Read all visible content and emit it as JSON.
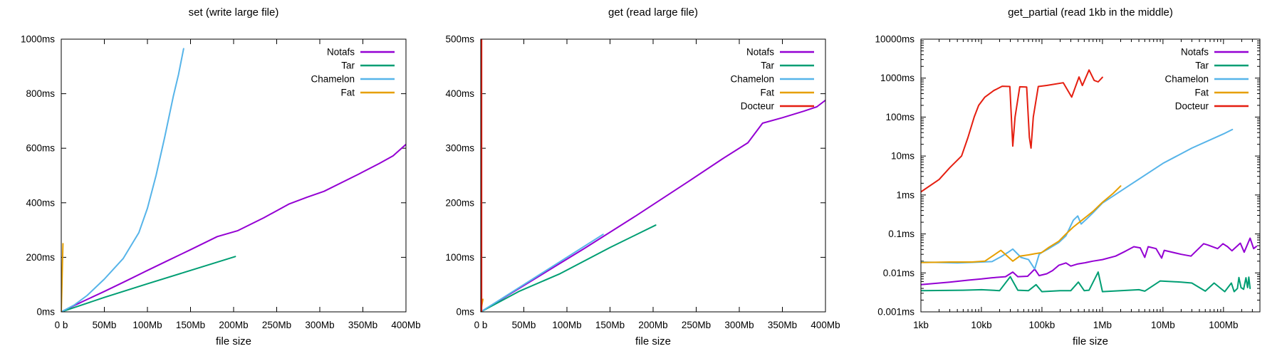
{
  "page": {
    "background": "#ffffff"
  },
  "legend_colors": {
    "Notafs": "#9400d3",
    "Tar": "#009e73",
    "Chamelon": "#56b4e9",
    "Fat": "#e69f00",
    "Docteur": "#e51e10"
  },
  "chart_data": [
    {
      "type": "line",
      "title": "set (write large file)",
      "xlabel": "file size",
      "xscale": "linear",
      "yscale": "linear",
      "xlim": [
        0,
        400
      ],
      "ylim": [
        0,
        1000
      ],
      "x_unit": "Mb",
      "y_unit": "ms",
      "grid": false,
      "legend_position": "top-right",
      "xticks": {
        "values": [
          0,
          50,
          100,
          150,
          200,
          250,
          300,
          350,
          400
        ],
        "labels": [
          "0 b",
          "50Mb",
          "100Mb",
          "150Mb",
          "200Mb",
          "250Mb",
          "300Mb",
          "350Mb",
          "400Mb"
        ]
      },
      "yticks": {
        "values": [
          0,
          200,
          400,
          600,
          800,
          1000
        ],
        "labels": [
          "0ms",
          "200ms",
          "400ms",
          "600ms",
          "800ms",
          "1000ms"
        ]
      },
      "series": [
        {
          "name": "Notafs",
          "color": "#9400d3",
          "points": [
            [
              0,
              0
            ],
            [
              25,
              38
            ],
            [
              50,
              75
            ],
            [
              75,
              113
            ],
            [
              100,
              152
            ],
            [
              125,
              190
            ],
            [
              150,
              228
            ],
            [
              181,
              276
            ],
            [
              205,
              298
            ],
            [
              235,
              345
            ],
            [
              264,
              395
            ],
            [
              285,
              420
            ],
            [
              305,
              442
            ],
            [
              345,
              505
            ],
            [
              369,
              544
            ],
            [
              385,
              572
            ],
            [
              400,
              614
            ]
          ]
        },
        {
          "name": "Tar",
          "color": "#009e73",
          "points": [
            [
              0,
              0
            ],
            [
              50,
              53
            ],
            [
              100,
              103
            ],
            [
              150,
              152
            ],
            [
              202,
              203
            ]
          ]
        },
        {
          "name": "Chamelon",
          "color": "#56b4e9",
          "points": [
            [
              0,
              0
            ],
            [
              15,
              25
            ],
            [
              30,
              60
            ],
            [
              50,
              120
            ],
            [
              72,
              196
            ],
            [
              90,
              290
            ],
            [
              100,
              380
            ],
            [
              110,
              500
            ],
            [
              120,
              640
            ],
            [
              130,
              790
            ],
            [
              136,
              870
            ],
            [
              142,
              965
            ]
          ]
        },
        {
          "name": "Fat",
          "color": "#e69f00",
          "points": [
            [
              0,
              0
            ],
            [
              0.6,
              70
            ],
            [
              1.3,
              170
            ],
            [
              2,
              250
            ]
          ]
        }
      ]
    },
    {
      "type": "line",
      "title": "get (read large file)",
      "xlabel": "file size",
      "xscale": "linear",
      "yscale": "linear",
      "xlim": [
        0,
        400
      ],
      "ylim": [
        0,
        500
      ],
      "x_unit": "Mb",
      "y_unit": "ms",
      "grid": false,
      "legend_position": "top-right",
      "xticks": {
        "values": [
          0,
          50,
          100,
          150,
          200,
          250,
          300,
          350,
          400
        ],
        "labels": [
          "0 b",
          "50Mb",
          "100Mb",
          "150Mb",
          "200Mb",
          "250Mb",
          "300Mb",
          "350Mb",
          "400Mb"
        ]
      },
      "yticks": {
        "values": [
          0,
          100,
          200,
          300,
          400,
          500
        ],
        "labels": [
          "0ms",
          "100ms",
          "200ms",
          "300ms",
          "400ms",
          "500ms"
        ]
      },
      "series": [
        {
          "name": "Notafs",
          "color": "#9400d3",
          "points": [
            [
              0,
              0
            ],
            [
              60,
              58
            ],
            [
              120,
              116
            ],
            [
              180,
              176
            ],
            [
              240,
              238
            ],
            [
              280,
              280
            ],
            [
              310,
              310
            ],
            [
              327,
              346
            ],
            [
              350,
              356
            ],
            [
              375,
              368
            ],
            [
              390,
              376
            ],
            [
              400,
              388
            ]
          ]
        },
        {
          "name": "Tar",
          "color": "#009e73",
          "points": [
            [
              0,
              0
            ],
            [
              45,
              38
            ],
            [
              92,
              70
            ],
            [
              150,
              118
            ],
            [
              203,
              159
            ]
          ]
        },
        {
          "name": "Chamelon",
          "color": "#56b4e9",
          "points": [
            [
              0,
              0
            ],
            [
              70,
              70
            ],
            [
              142,
              142
            ]
          ]
        },
        {
          "name": "Fat",
          "color": "#e69f00",
          "points": [
            [
              0,
              2
            ],
            [
              1,
              10
            ],
            [
              2.5,
              23
            ]
          ]
        },
        {
          "name": "Docteur",
          "color": "#e51e10",
          "points": [
            [
              0.6,
              0
            ],
            [
              0.6,
              500
            ]
          ]
        }
      ]
    },
    {
      "type": "line",
      "title": "get_partial (read 1kb in the middle)",
      "xlabel": "file size",
      "xscale": "log",
      "yscale": "log",
      "xlim": [
        1,
        400000
      ],
      "ylim": [
        0.001,
        10000
      ],
      "x_unit": "kb",
      "y_unit": "ms",
      "grid": false,
      "legend_position": "top-right",
      "xticks": {
        "values": [
          1,
          10,
          100,
          1000,
          10000,
          100000
        ],
        "labels": [
          "1kb",
          "10kb",
          "100kb",
          "1Mb",
          "10Mb",
          "100Mb"
        ]
      },
      "yticks": {
        "values": [
          0.001,
          0.01,
          0.1,
          1,
          10,
          100,
          1000,
          10000
        ],
        "labels": [
          "0.001ms",
          "0.01ms",
          "0.1ms",
          "1ms",
          "10ms",
          "100ms",
          "1000ms",
          "10000ms"
        ]
      },
      "series": [
        {
          "name": "Notafs",
          "color": "#9400d3",
          "points": [
            [
              1,
              0.005
            ],
            [
              3,
              0.0058
            ],
            [
              6,
              0.0065
            ],
            [
              10,
              0.007
            ],
            [
              15,
              0.0075
            ],
            [
              25,
              0.008
            ],
            [
              33,
              0.0105
            ],
            [
              40,
              0.008
            ],
            [
              58,
              0.0082
            ],
            [
              76,
              0.0125
            ],
            [
              90,
              0.0085
            ],
            [
              120,
              0.0095
            ],
            [
              150,
              0.0115
            ],
            [
              190,
              0.0157
            ],
            [
              250,
              0.018
            ],
            [
              300,
              0.015
            ],
            [
              390,
              0.017
            ],
            [
              500,
              0.018
            ],
            [
              690,
              0.02
            ],
            [
              1000,
              0.022
            ],
            [
              1650,
              0.027
            ],
            [
              2400,
              0.036
            ],
            [
              3300,
              0.047
            ],
            [
              4200,
              0.044
            ],
            [
              5000,
              0.025
            ],
            [
              5700,
              0.047
            ],
            [
              7700,
              0.042
            ],
            [
              9500,
              0.024
            ],
            [
              10500,
              0.038
            ],
            [
              20000,
              0.03
            ],
            [
              29000,
              0.027
            ],
            [
              47000,
              0.056
            ],
            [
              55000,
              0.052
            ],
            [
              80000,
              0.042
            ],
            [
              98000,
              0.056
            ],
            [
              117000,
              0.047
            ],
            [
              138000,
              0.037
            ],
            [
              190000,
              0.058
            ],
            [
              220000,
              0.034
            ],
            [
              275000,
              0.078
            ],
            [
              315000,
              0.042
            ],
            [
              350000,
              0.048
            ]
          ]
        },
        {
          "name": "Tar",
          "color": "#009e73",
          "points": [
            [
              1,
              0.0035
            ],
            [
              5,
              0.0036
            ],
            [
              10,
              0.0037
            ],
            [
              20,
              0.0035
            ],
            [
              30,
              0.008
            ],
            [
              40,
              0.0036
            ],
            [
              60,
              0.0035
            ],
            [
              80,
              0.005
            ],
            [
              100,
              0.0033
            ],
            [
              200,
              0.0035
            ],
            [
              300,
              0.0035
            ],
            [
              400,
              0.0058
            ],
            [
              500,
              0.0035
            ],
            [
              600,
              0.0036
            ],
            [
              850,
              0.0105
            ],
            [
              1000,
              0.0033
            ],
            [
              2000,
              0.0035
            ],
            [
              4000,
              0.0037
            ],
            [
              5000,
              0.0034
            ],
            [
              9000,
              0.0062
            ],
            [
              20000,
              0.0058
            ],
            [
              30000,
              0.0055
            ],
            [
              50000,
              0.0034
            ],
            [
              70000,
              0.0055
            ],
            [
              90000,
              0.004
            ],
            [
              105000,
              0.0033
            ],
            [
              135000,
              0.0055
            ],
            [
              150000,
              0.0033
            ],
            [
              170000,
              0.004
            ],
            [
              180000,
              0.0076
            ],
            [
              195000,
              0.0042
            ],
            [
              215000,
              0.0038
            ],
            [
              235000,
              0.0075
            ],
            [
              250000,
              0.0042
            ],
            [
              262000,
              0.0078
            ],
            [
              275000,
              0.004
            ]
          ]
        },
        {
          "name": "Chamelon",
          "color": "#56b4e9",
          "points": [
            [
              1,
              0.019
            ],
            [
              4,
              0.018
            ],
            [
              10,
              0.019
            ],
            [
              15,
              0.0195
            ],
            [
              21,
              0.026
            ],
            [
              27,
              0.033
            ],
            [
              33,
              0.041
            ],
            [
              45,
              0.025
            ],
            [
              60,
              0.022
            ],
            [
              76,
              0.0126
            ],
            [
              90,
              0.03
            ],
            [
              98,
              0.033
            ],
            [
              130,
              0.042
            ],
            [
              190,
              0.06
            ],
            [
              250,
              0.09
            ],
            [
              330,
              0.225
            ],
            [
              390,
              0.29
            ],
            [
              445,
              0.18
            ],
            [
              560,
              0.25
            ],
            [
              700,
              0.35
            ],
            [
              1000,
              0.62
            ],
            [
              3000,
              1.9
            ],
            [
              10000,
              6.5
            ],
            [
              30000,
              16
            ],
            [
              100000,
              37
            ],
            [
              140000,
              48
            ]
          ]
        },
        {
          "name": "Fat",
          "color": "#e69f00",
          "points": [
            [
              1,
              0.0185
            ],
            [
              3,
              0.019
            ],
            [
              7,
              0.019
            ],
            [
              11.4,
              0.02
            ],
            [
              21,
              0.038
            ],
            [
              26,
              0.028
            ],
            [
              33,
              0.02
            ],
            [
              43,
              0.027
            ],
            [
              60,
              0.029
            ],
            [
              76,
              0.031
            ],
            [
              98,
              0.033
            ],
            [
              130,
              0.045
            ],
            [
              190,
              0.065
            ],
            [
              250,
              0.1
            ],
            [
              330,
              0.15
            ],
            [
              465,
              0.23
            ],
            [
              700,
              0.38
            ],
            [
              1000,
              0.65
            ],
            [
              1500,
              1.1
            ],
            [
              2000,
              1.7
            ]
          ]
        },
        {
          "name": "Docteur",
          "color": "#e51e10",
          "points": [
            [
              1,
              1.2
            ],
            [
              2,
              2.5
            ],
            [
              3,
              5
            ],
            [
              4.7,
              10
            ],
            [
              6,
              30
            ],
            [
              7.6,
              100
            ],
            [
              9,
              200
            ],
            [
              11.4,
              325
            ],
            [
              16,
              480
            ],
            [
              22,
              620
            ],
            [
              29.5,
              610
            ],
            [
              33,
              18
            ],
            [
              36,
              100
            ],
            [
              43,
              600
            ],
            [
              56,
              590
            ],
            [
              62,
              30
            ],
            [
              66,
              16
            ],
            [
              72,
              100
            ],
            [
              87,
              610
            ],
            [
              120,
              650
            ],
            [
              225,
              760
            ],
            [
              310,
              325
            ],
            [
              410,
              1070
            ],
            [
              465,
              645
            ],
            [
              600,
              1620
            ],
            [
              730,
              875
            ],
            [
              850,
              800
            ],
            [
              1000,
              1050
            ]
          ]
        }
      ]
    }
  ]
}
